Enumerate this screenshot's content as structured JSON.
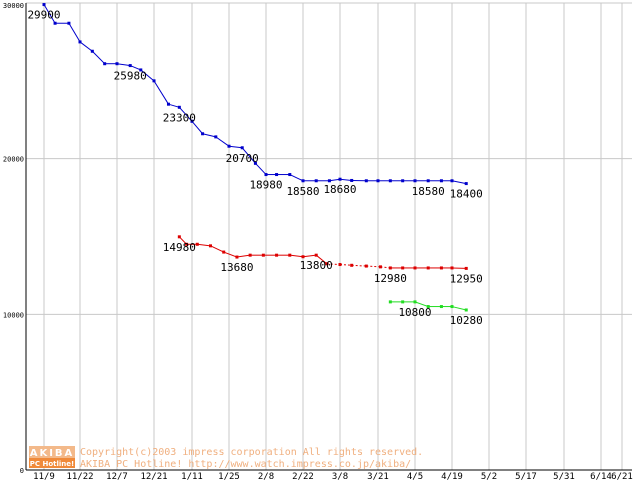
{
  "chart_data": {
    "type": "line",
    "title": "",
    "xlabel": "",
    "ylabel": "",
    "ylim": [
      0,
      30000
    ],
    "y_ticks": [
      0,
      10000,
      20000,
      30000
    ],
    "x_tick_labels": [
      "11/9",
      "11/22",
      "12/7",
      "12/21",
      "1/11",
      "1/25",
      "2/8",
      "2/22",
      "3/8",
      "3/21",
      "4/5",
      "4/19",
      "5/2",
      "5/17",
      "5/31",
      "6/14",
      "6/21"
    ],
    "grid": true,
    "colors": {
      "blue": "#0000cc",
      "red": "#dd0000",
      "green": "#22dd22",
      "grid": "#c8c8c8"
    },
    "series": [
      {
        "color_key": "blue",
        "values": [
          [
            "11/9",
            29900
          ],
          [
            "11/13",
            28700
          ],
          [
            "11/18",
            28700
          ],
          [
            "11/22",
            27500
          ],
          [
            "11/27",
            26900
          ],
          [
            "12/2",
            26100
          ],
          [
            "12/7",
            26100
          ],
          [
            "12/12",
            25980
          ],
          [
            "12/16",
            25700
          ],
          [
            "12/21",
            25000
          ],
          [
            "12/29",
            23500
          ],
          [
            "1/4",
            23300
          ],
          [
            "1/11",
            22400
          ],
          [
            "1/15",
            21600
          ],
          [
            "1/20",
            21400
          ],
          [
            "1/25",
            20800
          ],
          [
            "1/30",
            20700
          ],
          [
            "2/4",
            19700
          ],
          [
            "2/8",
            18980
          ],
          [
            "2/12",
            18980
          ],
          [
            "2/17",
            18980
          ],
          [
            "2/22",
            18580
          ],
          [
            "2/27",
            18580
          ],
          [
            "3/4",
            18580
          ],
          [
            "3/8",
            18680
          ],
          [
            "3/12",
            18600
          ],
          [
            "3/17",
            18580
          ],
          [
            "3/21",
            18580
          ],
          [
            "3/26",
            18580
          ],
          [
            "3/31",
            18580
          ],
          [
            "4/5",
            18580
          ],
          [
            "4/10",
            18580
          ],
          [
            "4/15",
            18580
          ],
          [
            "4/19",
            18580
          ],
          [
            "4/24",
            18400
          ]
        ],
        "labels": [
          {
            "x": "11/9",
            "text": "29900"
          },
          {
            "x": "12/12",
            "text": "25980"
          },
          {
            "x": "1/4",
            "text": "23300"
          },
          {
            "x": "1/30",
            "text": "20700"
          },
          {
            "x": "2/8",
            "text": "18980"
          },
          {
            "x": "2/22",
            "text": "18580"
          },
          {
            "x": "3/8",
            "text": "18680"
          },
          {
            "x": "4/10",
            "text": "18580"
          },
          {
            "x": "4/24",
            "text": "18400"
          }
        ]
      },
      {
        "color_key": "red",
        "values": [
          [
            "1/4",
            14980
          ],
          [
            "1/8",
            14500
          ],
          [
            "1/13",
            14500
          ],
          [
            "1/18",
            14400
          ],
          [
            "1/23",
            14000
          ],
          [
            "1/28",
            13680
          ],
          [
            "2/2",
            13800
          ],
          [
            "2/7",
            13800
          ],
          [
            "2/12",
            13800
          ],
          [
            "2/17",
            13800
          ],
          [
            "2/22",
            13700
          ],
          [
            "2/27",
            13800
          ],
          [
            "3/3",
            13250
          ],
          [
            "3/8",
            13200
          ],
          [
            "3/12",
            13150
          ],
          [
            "3/17",
            13100
          ],
          [
            "3/22",
            13050
          ],
          [
            "3/26",
            12980
          ],
          [
            "3/31",
            12980
          ],
          [
            "4/5",
            12980
          ],
          [
            "4/10",
            12980
          ],
          [
            "4/15",
            12980
          ],
          [
            "4/19",
            12980
          ],
          [
            "4/24",
            12950
          ]
        ],
        "dashed_range": [
          "3/3",
          "3/26"
        ],
        "labels": [
          {
            "x": "1/4",
            "text": "14980"
          },
          {
            "x": "1/28",
            "text": "13680"
          },
          {
            "x": "2/27",
            "text": "13800"
          },
          {
            "x": "3/26",
            "text": "12980"
          },
          {
            "x": "4/24",
            "text": "12950"
          }
        ]
      },
      {
        "color_key": "green",
        "values": [
          [
            "3/26",
            10800
          ],
          [
            "3/31",
            10800
          ],
          [
            "4/5",
            10800
          ],
          [
            "4/10",
            10500
          ],
          [
            "4/15",
            10500
          ],
          [
            "4/19",
            10500
          ],
          [
            "4/24",
            10280
          ]
        ],
        "labels": [
          {
            "x": "4/5",
            "text": "10800"
          },
          {
            "x": "4/24",
            "text": "10280"
          }
        ]
      }
    ]
  },
  "watermark": {
    "logo_line1": "AKIBA",
    "logo_line2": "PC Hotline!",
    "copyright": "Copyright(c)2003 impress corporation All rights reserved.",
    "url_line": "AKIBA PC Hotline!  http://www.watch.impress.co.jp/akiba/"
  }
}
